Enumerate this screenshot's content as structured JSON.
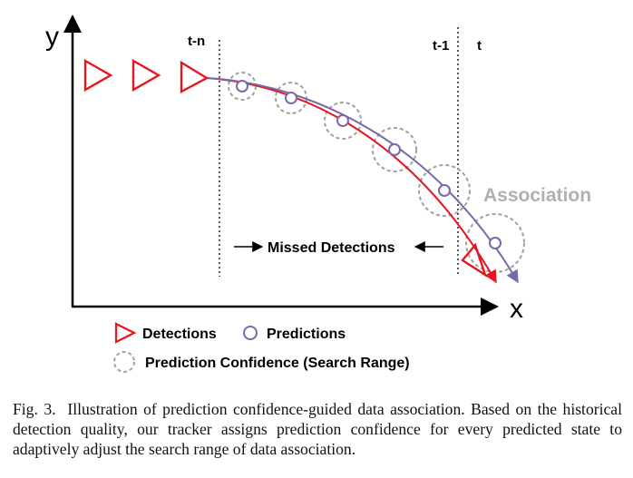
{
  "diagram": {
    "axes": {
      "x_label": "x",
      "y_label": "y"
    },
    "time_labels": [
      "t-n",
      "t-1",
      "t"
    ],
    "annotations": {
      "missed": "Missed Detections",
      "association": "Association"
    },
    "legend": {
      "detections": "Detections",
      "predictions": "Predictions",
      "confidence": "Prediction Confidence (Search Range)"
    },
    "colors": {
      "detection": "#e8141e",
      "prediction": "#7a68a8",
      "confidence": "#a0a0a0",
      "association_text": "#b0b0b0"
    }
  },
  "caption": {
    "label": "Fig. 3.",
    "text": "Illustration of prediction confidence-guided data association. Based on the historical detection quality, our tracker assigns prediction confidence for every predicted state to adaptively adjust the search range of data association."
  }
}
